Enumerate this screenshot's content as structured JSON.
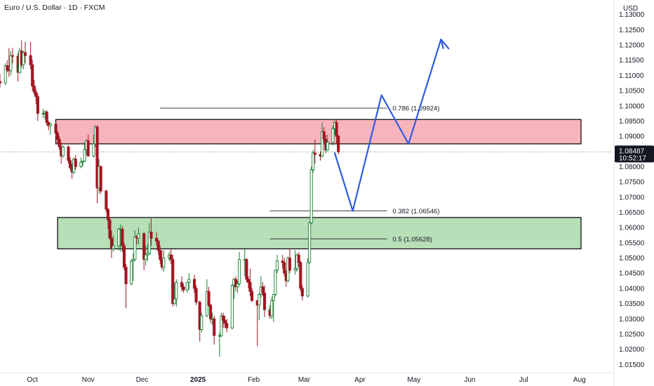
{
  "header": {
    "title": "Euro / U.S. Dollar · 1D · FXCM"
  },
  "chart_data": {
    "type": "candlestick",
    "currency_label": "USD",
    "y_ticks": [
      "1.01500",
      "1.02000",
      "1.02500",
      "1.03000",
      "1.03500",
      "1.04000",
      "1.04500",
      "1.05000",
      "1.05500",
      "1.06000",
      "1.06500",
      "1.07000",
      "1.07500",
      "1.08000",
      "1.08500",
      "1.09000",
      "1.09500",
      "1.10000",
      "1.10500",
      "1.11000",
      "1.11500",
      "1.12000",
      "1.12500",
      "1.13000"
    ],
    "ylim": [
      1.013,
      1.132
    ],
    "x_ticks": [
      {
        "label": "Oct",
        "date": "2024-10-01"
      },
      {
        "label": "Nov",
        "date": "2024-11-01"
      },
      {
        "label": "Dec",
        "date": "2024-12-01"
      },
      {
        "label": "2025",
        "date": "2025-01-01",
        "bold": true
      },
      {
        "label": "Feb",
        "date": "2025-02-01"
      },
      {
        "label": "Mar",
        "date": "2025-03-01"
      },
      {
        "label": "Apr",
        "date": "2025-04-01"
      },
      {
        "label": "May",
        "date": "2025-05-01"
      },
      {
        "label": "Jun",
        "date": "2025-06-01"
      },
      {
        "label": "Jul",
        "date": "2025-07-01"
      },
      {
        "label": "Aug",
        "date": "2025-08-01"
      }
    ],
    "xlim": [
      "2024-09-13",
      "2025-08-19"
    ],
    "current_price": {
      "price": "1.08487",
      "countdown": "10:52:17",
      "value": 1.08487
    },
    "zones": [
      {
        "name": "supply-zone",
        "from": "2024-10-14",
        "to": "2025-08-16",
        "low": 1.0875,
        "high": 1.0955,
        "color": "#f8b4bc"
      },
      {
        "name": "demand-zone",
        "from": "2024-10-15",
        "to": "2025-08-16",
        "low": 1.053,
        "high": 1.0633,
        "color": "#b7dfb8"
      }
    ],
    "fib_levels": [
      {
        "label": "0.786 (1.09924)",
        "value": 1.09924,
        "from": "2024-12-11",
        "to": "2025-04-16"
      },
      {
        "label": "0.382 (1.06546)",
        "value": 1.06546,
        "from": "2025-02-10",
        "to": "2025-04-16"
      },
      {
        "label": "0.5 (1.05628)",
        "value": 1.05628,
        "from": "2025-02-10",
        "to": "2025-04-16"
      }
    ],
    "projection": {
      "color": "#2f5be0",
      "points": [
        {
          "date": "2025-03-18",
          "value": 1.0845
        },
        {
          "date": "2025-03-28",
          "value": 1.0655
        },
        {
          "date": "2025-04-13",
          "value": 1.1035
        },
        {
          "date": "2025-04-28",
          "value": 1.0875
        },
        {
          "date": "2025-05-16",
          "value": 1.1218
        }
      ],
      "arrow_tip": {
        "date": "2025-05-16",
        "value": 1.1218
      }
    },
    "candles": [
      {
        "date": "2024-09-13",
        "o": 1.108,
        "h": 1.1105,
        "l": 1.106,
        "c": 1.1075
      },
      {
        "date": "2024-09-16",
        "o": 1.1075,
        "h": 1.114,
        "l": 1.1068,
        "c": 1.1132
      },
      {
        "date": "2024-09-17",
        "o": 1.1132,
        "h": 1.115,
        "l": 1.111,
        "c": 1.1118
      },
      {
        "date": "2024-09-18",
        "o": 1.1118,
        "h": 1.119,
        "l": 1.1095,
        "c": 1.1115
      },
      {
        "date": "2024-09-19",
        "o": 1.1115,
        "h": 1.118,
        "l": 1.11,
        "c": 1.1165
      },
      {
        "date": "2024-09-20",
        "o": 1.1165,
        "h": 1.119,
        "l": 1.114,
        "c": 1.1163
      },
      {
        "date": "2024-09-23",
        "o": 1.1163,
        "h": 1.1175,
        "l": 1.108,
        "c": 1.111
      },
      {
        "date": "2024-09-24",
        "o": 1.111,
        "h": 1.119,
        "l": 1.1105,
        "c": 1.118
      },
      {
        "date": "2024-09-25",
        "o": 1.118,
        "h": 1.1215,
        "l": 1.1125,
        "c": 1.1135
      },
      {
        "date": "2024-09-26",
        "o": 1.1135,
        "h": 1.118,
        "l": 1.112,
        "c": 1.1175
      },
      {
        "date": "2024-09-27",
        "o": 1.1175,
        "h": 1.121,
        "l": 1.114,
        "c": 1.1165
      },
      {
        "date": "2024-09-30",
        "o": 1.1165,
        "h": 1.121,
        "l": 1.112,
        "c": 1.1135
      },
      {
        "date": "2024-10-01",
        "o": 1.1135,
        "h": 1.115,
        "l": 1.105,
        "c": 1.1065
      },
      {
        "date": "2024-10-02",
        "o": 1.1065,
        "h": 1.1085,
        "l": 1.1035,
        "c": 1.1045
      },
      {
        "date": "2024-10-03",
        "o": 1.1045,
        "h": 1.1055,
        "l": 1.1005,
        "c": 1.103
      },
      {
        "date": "2024-10-04",
        "o": 1.103,
        "h": 1.104,
        "l": 1.095,
        "c": 1.0975
      },
      {
        "date": "2024-10-07",
        "o": 1.0975,
        "h": 1.099,
        "l": 1.096,
        "c": 1.0975
      },
      {
        "date": "2024-10-08",
        "o": 1.0975,
        "h": 1.0985,
        "l": 1.0955,
        "c": 1.098
      },
      {
        "date": "2024-10-09",
        "o": 1.098,
        "h": 1.0985,
        "l": 1.0935,
        "c": 1.0945
      },
      {
        "date": "2024-10-10",
        "o": 1.0945,
        "h": 1.095,
        "l": 1.092,
        "c": 1.0935
      },
      {
        "date": "2024-10-11",
        "o": 1.0935,
        "h": 1.0945,
        "l": 1.0905,
        "c": 1.094
      },
      {
        "date": "2024-10-14",
        "o": 1.094,
        "h": 1.0945,
        "l": 1.09,
        "c": 1.091
      },
      {
        "date": "2024-10-15",
        "o": 1.091,
        "h": 1.0918,
        "l": 1.0875,
        "c": 1.089
      },
      {
        "date": "2024-10-16",
        "o": 1.089,
        "h": 1.09,
        "l": 1.0855,
        "c": 1.0865
      },
      {
        "date": "2024-10-17",
        "o": 1.0865,
        "h": 1.088,
        "l": 1.081,
        "c": 1.0835
      },
      {
        "date": "2024-10-18",
        "o": 1.0835,
        "h": 1.087,
        "l": 1.083,
        "c": 1.0865
      },
      {
        "date": "2024-10-21",
        "o": 1.0865,
        "h": 1.087,
        "l": 1.081,
        "c": 1.082
      },
      {
        "date": "2024-10-22",
        "o": 1.082,
        "h": 1.083,
        "l": 1.079,
        "c": 1.0797
      },
      {
        "date": "2024-10-23",
        "o": 1.0797,
        "h": 1.081,
        "l": 1.076,
        "c": 1.0782
      },
      {
        "date": "2024-10-24",
        "o": 1.0782,
        "h": 1.083,
        "l": 1.0775,
        "c": 1.0825
      },
      {
        "date": "2024-10-25",
        "o": 1.0825,
        "h": 1.0838,
        "l": 1.079,
        "c": 1.08
      },
      {
        "date": "2024-10-28",
        "o": 1.08,
        "h": 1.083,
        "l": 1.0795,
        "c": 1.0815
      },
      {
        "date": "2024-10-29",
        "o": 1.0815,
        "h": 1.082,
        "l": 1.08,
        "c": 1.0818
      },
      {
        "date": "2024-10-30",
        "o": 1.0818,
        "h": 1.088,
        "l": 1.0815,
        "c": 1.0855
      },
      {
        "date": "2024-10-31",
        "o": 1.0855,
        "h": 1.089,
        "l": 1.084,
        "c": 1.0885
      },
      {
        "date": "2024-11-01",
        "o": 1.0885,
        "h": 1.0905,
        "l": 1.0833,
        "c": 1.0835
      },
      {
        "date": "2024-11-04",
        "o": 1.0835,
        "h": 1.0905,
        "l": 1.083,
        "c": 1.0875
      },
      {
        "date": "2024-11-05",
        "o": 1.0875,
        "h": 1.0937,
        "l": 1.0865,
        "c": 1.093
      },
      {
        "date": "2024-11-06",
        "o": 1.093,
        "h": 1.0937,
        "l": 1.068,
        "c": 1.073
      },
      {
        "date": "2024-11-07",
        "o": 1.073,
        "h": 1.0825,
        "l": 1.071,
        "c": 1.08
      },
      {
        "date": "2024-11-08",
        "o": 1.08,
        "h": 1.0805,
        "l": 1.071,
        "c": 1.072
      },
      {
        "date": "2024-11-11",
        "o": 1.072,
        "h": 1.0725,
        "l": 1.065,
        "c": 1.066
      },
      {
        "date": "2024-11-12",
        "o": 1.066,
        "h": 1.0665,
        "l": 1.0595,
        "c": 1.0625
      },
      {
        "date": "2024-11-13",
        "o": 1.0625,
        "h": 1.0635,
        "l": 1.056,
        "c": 1.0565
      },
      {
        "date": "2024-11-14",
        "o": 1.0565,
        "h": 1.059,
        "l": 1.05,
        "c": 1.053
      },
      {
        "date": "2024-11-15",
        "o": 1.053,
        "h": 1.0575,
        "l": 1.052,
        "c": 1.054
      },
      {
        "date": "2024-11-18",
        "o": 1.054,
        "h": 1.06,
        "l": 1.0525,
        "c": 1.0595
      },
      {
        "date": "2024-11-19",
        "o": 1.0595,
        "h": 1.061,
        "l": 1.052,
        "c": 1.0595
      },
      {
        "date": "2024-11-20",
        "o": 1.0595,
        "h": 1.0605,
        "l": 1.052,
        "c": 1.054
      },
      {
        "date": "2024-11-21",
        "o": 1.054,
        "h": 1.055,
        "l": 1.046,
        "c": 1.047
      },
      {
        "date": "2024-11-22",
        "o": 1.047,
        "h": 1.048,
        "l": 1.0335,
        "c": 1.0415
      },
      {
        "date": "2024-11-25",
        "o": 1.0415,
        "h": 1.0495,
        "l": 1.041,
        "c": 1.049
      },
      {
        "date": "2024-11-26",
        "o": 1.049,
        "h": 1.0515,
        "l": 1.0425,
        "c": 1.0495
      },
      {
        "date": "2024-11-27",
        "o": 1.0495,
        "h": 1.059,
        "l": 1.049,
        "c": 1.057
      },
      {
        "date": "2024-11-28",
        "o": 1.057,
        "h": 1.0575,
        "l": 1.0545,
        "c": 1.0565
      },
      {
        "date": "2024-11-29",
        "o": 1.0565,
        "h": 1.06,
        "l": 1.0545,
        "c": 1.058
      },
      {
        "date": "2024-12-02",
        "o": 1.058,
        "h": 1.0585,
        "l": 1.046,
        "c": 1.0495
      },
      {
        "date": "2024-12-03",
        "o": 1.0495,
        "h": 1.054,
        "l": 1.0475,
        "c": 1.051
      },
      {
        "date": "2024-12-04",
        "o": 1.051,
        "h": 1.0545,
        "l": 1.049,
        "c": 1.0515
      },
      {
        "date": "2024-12-05",
        "o": 1.0515,
        "h": 1.0615,
        "l": 1.051,
        "c": 1.0585
      },
      {
        "date": "2024-12-06",
        "o": 1.0585,
        "h": 1.063,
        "l": 1.054,
        "c": 1.0565
      },
      {
        "date": "2024-12-09",
        "o": 1.0565,
        "h": 1.0585,
        "l": 1.054,
        "c": 1.0555
      },
      {
        "date": "2024-12-10",
        "o": 1.0555,
        "h": 1.056,
        "l": 1.051,
        "c": 1.0525
      },
      {
        "date": "2024-12-11",
        "o": 1.0525,
        "h": 1.054,
        "l": 1.048,
        "c": 1.0495
      },
      {
        "date": "2024-12-12",
        "o": 1.0495,
        "h": 1.0525,
        "l": 1.046,
        "c": 1.047
      },
      {
        "date": "2024-12-13",
        "o": 1.047,
        "h": 1.0525,
        "l": 1.0455,
        "c": 1.05
      },
      {
        "date": "2024-12-16",
        "o": 1.05,
        "h": 1.052,
        "l": 1.049,
        "c": 1.051
      },
      {
        "date": "2024-12-17",
        "o": 1.051,
        "h": 1.053,
        "l": 1.048,
        "c": 1.0495
      },
      {
        "date": "2024-12-18",
        "o": 1.0495,
        "h": 1.051,
        "l": 1.034,
        "c": 1.035
      },
      {
        "date": "2024-12-19",
        "o": 1.035,
        "h": 1.042,
        "l": 1.0345,
        "c": 1.0365
      },
      {
        "date": "2024-12-20",
        "o": 1.0365,
        "h": 1.043,
        "l": 1.034,
        "c": 1.042
      },
      {
        "date": "2024-12-23",
        "o": 1.042,
        "h": 1.044,
        "l": 1.039,
        "c": 1.0405
      },
      {
        "date": "2024-12-24",
        "o": 1.0405,
        "h": 1.0415,
        "l": 1.0385,
        "c": 1.0395
      },
      {
        "date": "2024-12-26",
        "o": 1.0395,
        "h": 1.042,
        "l": 1.0385,
        "c": 1.042
      },
      {
        "date": "2024-12-27",
        "o": 1.042,
        "h": 1.045,
        "l": 1.0395,
        "c": 1.043
      },
      {
        "date": "2024-12-30",
        "o": 1.043,
        "h": 1.0445,
        "l": 1.0385,
        "c": 1.04
      },
      {
        "date": "2024-12-31",
        "o": 1.04,
        "h": 1.041,
        "l": 1.0345,
        "c": 1.0355
      },
      {
        "date": "2025-01-02",
        "o": 1.0355,
        "h": 1.036,
        "l": 1.0225,
        "c": 1.0265
      },
      {
        "date": "2025-01-03",
        "o": 1.0265,
        "h": 1.032,
        "l": 1.0255,
        "c": 1.031
      },
      {
        "date": "2025-01-06",
        "o": 1.031,
        "h": 1.043,
        "l": 1.0305,
        "c": 1.039
      },
      {
        "date": "2025-01-07",
        "o": 1.039,
        "h": 1.0405,
        "l": 1.034,
        "c": 1.0345
      },
      {
        "date": "2025-01-08",
        "o": 1.0345,
        "h": 1.035,
        "l": 1.0285,
        "c": 1.03
      },
      {
        "date": "2025-01-09",
        "o": 1.03,
        "h": 1.032,
        "l": 1.028,
        "c": 1.03
      },
      {
        "date": "2025-01-10",
        "o": 1.03,
        "h": 1.031,
        "l": 1.0215,
        "c": 1.0245
      },
      {
        "date": "2025-01-13",
        "o": 1.0245,
        "h": 1.0255,
        "l": 1.0175,
        "c": 1.0245
      },
      {
        "date": "2025-01-14",
        "o": 1.0245,
        "h": 1.032,
        "l": 1.024,
        "c": 1.031
      },
      {
        "date": "2025-01-15",
        "o": 1.031,
        "h": 1.032,
        "l": 1.027,
        "c": 1.0295
      },
      {
        "date": "2025-01-16",
        "o": 1.0295,
        "h": 1.031,
        "l": 1.027,
        "c": 1.0285
      },
      {
        "date": "2025-01-17",
        "o": 1.0285,
        "h": 1.03,
        "l": 1.0255,
        "c": 1.027
      },
      {
        "date": "2025-01-20",
        "o": 1.027,
        "h": 1.0415,
        "l": 1.0265,
        "c": 1.041
      },
      {
        "date": "2025-01-21",
        "o": 1.041,
        "h": 1.0435,
        "l": 1.0365,
        "c": 1.043
      },
      {
        "date": "2025-01-22",
        "o": 1.043,
        "h": 1.044,
        "l": 1.039,
        "c": 1.0405
      },
      {
        "date": "2025-01-23",
        "o": 1.0405,
        "h": 1.0425,
        "l": 1.0385,
        "c": 1.0415
      },
      {
        "date": "2025-01-24",
        "o": 1.0415,
        "h": 1.052,
        "l": 1.041,
        "c": 1.0495
      },
      {
        "date": "2025-01-27",
        "o": 1.0495,
        "h": 1.053,
        "l": 1.044,
        "c": 1.0495
      },
      {
        "date": "2025-01-28",
        "o": 1.0495,
        "h": 1.05,
        "l": 1.042,
        "c": 1.043
      },
      {
        "date": "2025-01-29",
        "o": 1.043,
        "h": 1.044,
        "l": 1.04,
        "c": 1.042
      },
      {
        "date": "2025-01-30",
        "o": 1.042,
        "h": 1.0465,
        "l": 1.0375,
        "c": 1.039
      },
      {
        "date": "2025-01-31",
        "o": 1.039,
        "h": 1.04,
        "l": 1.0355,
        "c": 1.036
      },
      {
        "date": "2025-02-03",
        "o": 1.036,
        "h": 1.036,
        "l": 1.021,
        "c": 1.0345
      },
      {
        "date": "2025-02-04",
        "o": 1.0345,
        "h": 1.0385,
        "l": 1.0295,
        "c": 1.038
      },
      {
        "date": "2025-02-05",
        "o": 1.038,
        "h": 1.044,
        "l": 1.037,
        "c": 1.0405
      },
      {
        "date": "2025-02-06",
        "o": 1.0405,
        "h": 1.042,
        "l": 1.0375,
        "c": 1.0385
      },
      {
        "date": "2025-02-07",
        "o": 1.0385,
        "h": 1.041,
        "l": 1.0305,
        "c": 1.033
      },
      {
        "date": "2025-02-10",
        "o": 1.033,
        "h": 1.0345,
        "l": 1.03,
        "c": 1.031
      },
      {
        "date": "2025-02-11",
        "o": 1.031,
        "h": 1.037,
        "l": 1.03,
        "c": 1.036
      },
      {
        "date": "2025-02-12",
        "o": 1.036,
        "h": 1.038,
        "l": 1.029,
        "c": 1.038
      },
      {
        "date": "2025-02-13",
        "o": 1.038,
        "h": 1.046,
        "l": 1.0375,
        "c": 1.046
      },
      {
        "date": "2025-02-14",
        "o": 1.046,
        "h": 1.051,
        "l": 1.045,
        "c": 1.049
      },
      {
        "date": "2025-02-17",
        "o": 1.049,
        "h": 1.051,
        "l": 1.0465,
        "c": 1.0485
      },
      {
        "date": "2025-02-18",
        "o": 1.0485,
        "h": 1.05,
        "l": 1.044,
        "c": 1.045
      },
      {
        "date": "2025-02-19",
        "o": 1.045,
        "h": 1.046,
        "l": 1.0405,
        "c": 1.0425
      },
      {
        "date": "2025-02-20",
        "o": 1.0425,
        "h": 1.0505,
        "l": 1.042,
        "c": 1.05
      },
      {
        "date": "2025-02-21",
        "o": 1.05,
        "h": 1.053,
        "l": 1.045,
        "c": 1.046
      },
      {
        "date": "2025-02-24",
        "o": 1.046,
        "h": 1.0525,
        "l": 1.0445,
        "c": 1.0465
      },
      {
        "date": "2025-02-25",
        "o": 1.0465,
        "h": 1.0515,
        "l": 1.0455,
        "c": 1.051
      },
      {
        "date": "2025-02-26",
        "o": 1.051,
        "h": 1.052,
        "l": 1.047,
        "c": 1.0485
      },
      {
        "date": "2025-02-27",
        "o": 1.0485,
        "h": 1.049,
        "l": 1.039,
        "c": 1.04
      },
      {
        "date": "2025-02-28",
        "o": 1.04,
        "h": 1.041,
        "l": 1.036,
        "c": 1.0375
      },
      {
        "date": "2025-03-03",
        "o": 1.0375,
        "h": 1.05,
        "l": 1.037,
        "c": 1.0485
      },
      {
        "date": "2025-03-04",
        "o": 1.0485,
        "h": 1.062,
        "l": 1.048,
        "c": 1.0615
      },
      {
        "date": "2025-03-05",
        "o": 1.0615,
        "h": 1.08,
        "l": 1.061,
        "c": 1.079
      },
      {
        "date": "2025-03-06",
        "o": 1.079,
        "h": 1.0855,
        "l": 1.078,
        "c": 1.0845
      },
      {
        "date": "2025-03-07",
        "o": 1.0845,
        "h": 1.089,
        "l": 1.081,
        "c": 1.084
      },
      {
        "date": "2025-03-10",
        "o": 1.084,
        "h": 1.085,
        "l": 1.082,
        "c": 1.0835
      },
      {
        "date": "2025-03-11",
        "o": 1.0835,
        "h": 1.0945,
        "l": 1.083,
        "c": 1.0915
      },
      {
        "date": "2025-03-12",
        "o": 1.0915,
        "h": 1.093,
        "l": 1.088,
        "c": 1.089
      },
      {
        "date": "2025-03-13",
        "o": 1.089,
        "h": 1.0905,
        "l": 1.0845,
        "c": 1.0855
      },
      {
        "date": "2025-03-14",
        "o": 1.0855,
        "h": 1.0905,
        "l": 1.085,
        "c": 1.088
      },
      {
        "date": "2025-03-17",
        "o": 1.088,
        "h": 1.0935,
        "l": 1.087,
        "c": 1.0925
      },
      {
        "date": "2025-03-18",
        "o": 1.0925,
        "h": 1.0955,
        "l": 1.0905,
        "c": 1.0945
      },
      {
        "date": "2025-03-19",
        "o": 1.0945,
        "h": 1.0955,
        "l": 1.0875,
        "c": 1.09
      },
      {
        "date": "2025-03-20",
        "o": 1.09,
        "h": 1.0905,
        "l": 1.084,
        "c": 1.0849
      }
    ]
  }
}
